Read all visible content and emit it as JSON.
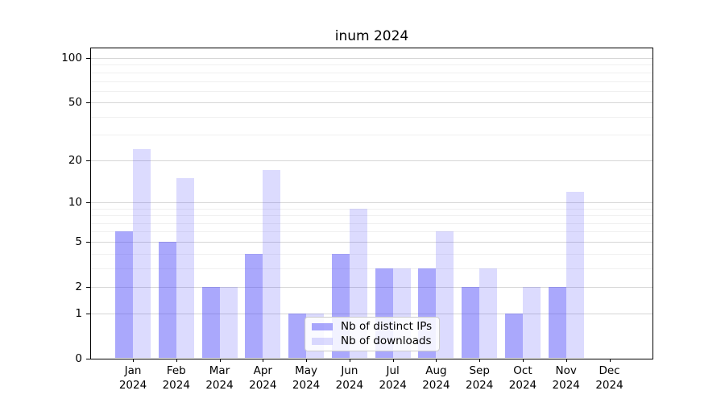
{
  "title": "inum 2024",
  "chart_data": {
    "type": "bar",
    "title": "inum 2024",
    "categories": [
      "Jan 2024",
      "Feb 2024",
      "Mar 2024",
      "Apr 2024",
      "May 2024",
      "Jun 2024",
      "Jul 2024",
      "Aug 2024",
      "Sep 2024",
      "Oct 2024",
      "Nov 2024",
      "Dec 2024"
    ],
    "series": [
      {
        "name": "Nb of distinct IPs",
        "values": [
          6,
          5,
          2,
          4,
          1,
          4,
          3,
          3,
          2,
          1,
          2,
          0
        ],
        "color": "rgba(70, 66, 248, 0.46)"
      },
      {
        "name": "Nb of downloads",
        "values": [
          24,
          15,
          2,
          17,
          1,
          9,
          3,
          6,
          3,
          2,
          12,
          0
        ],
        "color": "rgba(70, 66, 248, 0.19)"
      }
    ],
    "xlabel": "",
    "ylabel": "",
    "yscale": "log1p",
    "ylim": [
      0,
      112
    ],
    "yticks": [
      0,
      1,
      2,
      5,
      10,
      20,
      50,
      100
    ],
    "minor_yticks": [
      3,
      4,
      6,
      7,
      8,
      9,
      30,
      40,
      60,
      70,
      80,
      90
    ],
    "grid": true,
    "legend_position": "inside bottom-center",
    "colors": {
      "axis": "#000000",
      "major_grid": "#d6d6d6",
      "minor_grid": "#f0f0f0",
      "background": "#ffffff"
    }
  }
}
